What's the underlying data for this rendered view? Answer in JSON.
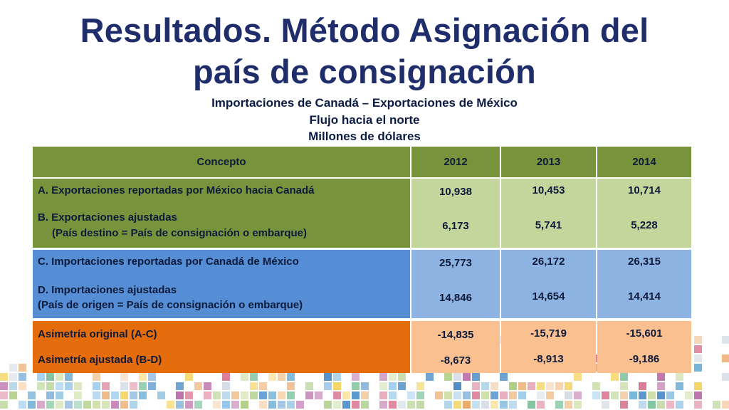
{
  "title_line1": "Resultados. Método Asignación del",
  "title_line2": "país de consignación",
  "subtitle1": "Importaciones de Canadá – Exportaciones de México",
  "subtitle2": "Flujo hacia el norte",
  "subtitle3": "Millones de dólares",
  "header": {
    "concept": "Concepto",
    "y1": "2012",
    "y2": "2013",
    "y3": "2014"
  },
  "rows": {
    "a": {
      "label": "A. Exportaciones reportadas por México hacia Canadá",
      "v1": "10,938",
      "v2": "10,453",
      "v3": "10,714"
    },
    "b": {
      "label1": "B. Exportaciones ajustadas",
      "label2": "(País destino = País de consignación o embarque)",
      "v1": "6,173",
      "v2": "5,741",
      "v3": "5,228"
    },
    "c": {
      "label": "C. Importaciones reportadas por Canadá de México",
      "v1": "25,773",
      "v2": "26,172",
      "v3": "26,315"
    },
    "d": {
      "label1": "D. Importaciones ajustadas",
      "label2": "(País de origen = País de consignación o embarque)",
      "v1": "14,846",
      "v2": "14,654",
      "v3": "14,414"
    },
    "e": {
      "label": "Asimetría original (A-C)",
      "v1": "-14,835",
      "v2": "-15,719",
      "v3": "-15,601"
    },
    "f": {
      "label": "Asimetría ajustada (B-D)",
      "v1": "-8,673",
      "v2": "-8,913",
      "v3": "-9,186"
    }
  },
  "colors": {
    "title": "#1f2d6b",
    "header": "#77933c",
    "group1_label": "#77933c",
    "group1_values": "#c3d69b",
    "group2_label": "#558ed5",
    "group2_values": "#8db3e2",
    "group3_label": "#e46c0a",
    "group3_values": "#fac090"
  }
}
